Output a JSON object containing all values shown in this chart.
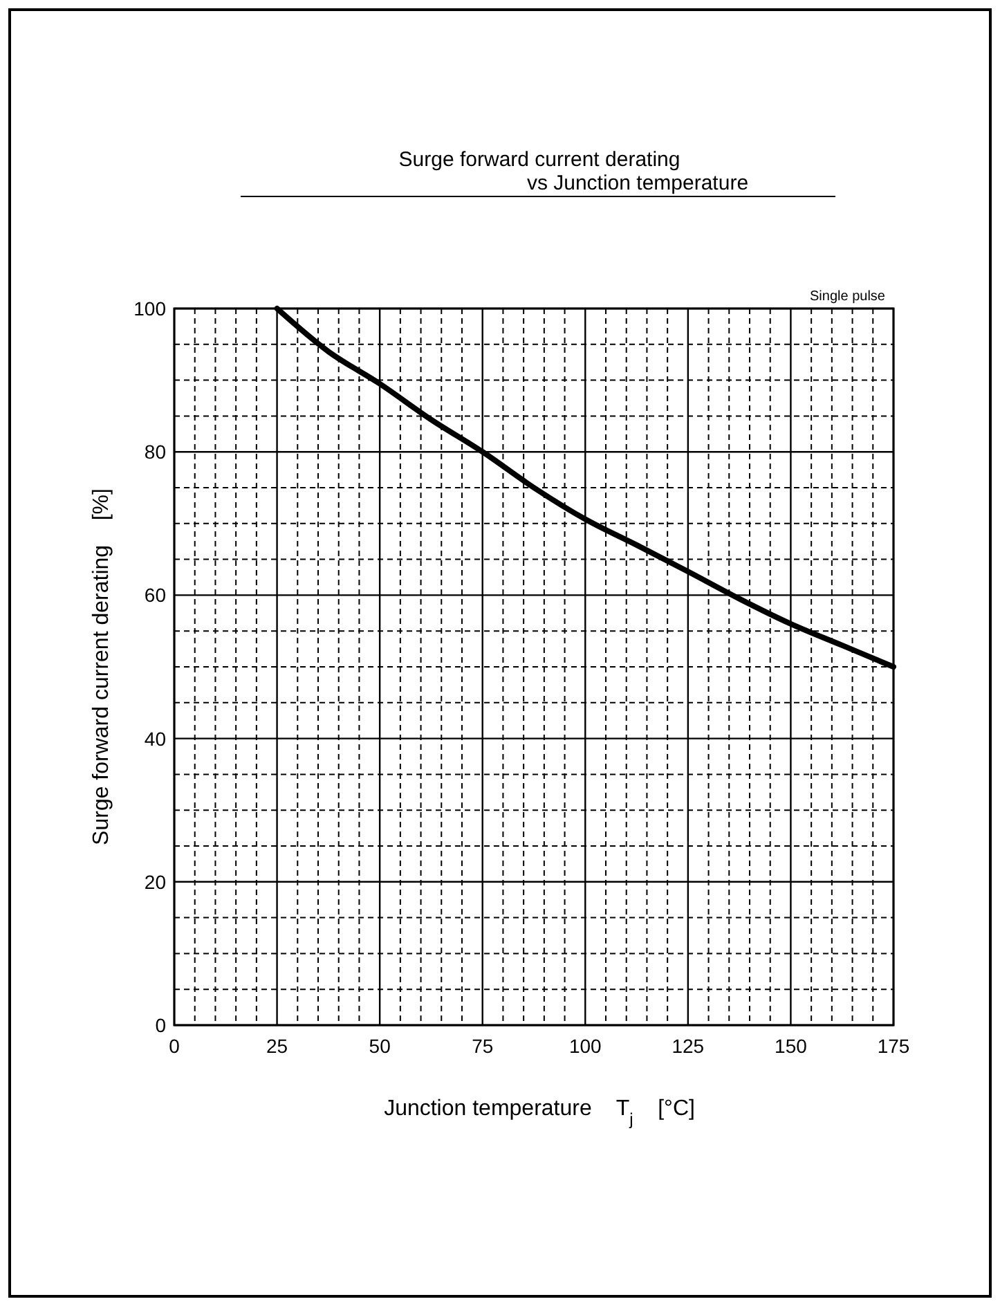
{
  "chart_data": {
    "type": "line",
    "title": "Surge forward current derating\nvs Junction temperature",
    "xlabel": "Junction temperature    T$_{j}$    [°C]",
    "ylabel": "Surge forward current derating    [%]",
    "annotations": [
      "Single pulse"
    ],
    "series": [
      {
        "color": "#000000",
        "x": [
          25,
          37.5,
          50,
          62.5,
          75,
          87.5,
          100,
          112.5,
          125,
          137.5,
          150,
          162.5,
          175
        ],
        "values": [
          100,
          94,
          89.5,
          84.5,
          80,
          75,
          70.6,
          67,
          63.3,
          59.5,
          56,
          53,
          50
        ]
      }
    ],
    "xlim": [
      0,
      175
    ],
    "ylim": [
      0,
      100
    ],
    "xticks": [
      0,
      {
        "value": 5,
        "label": null
      },
      {
        "value": 10,
        "label": null
      },
      {
        "value": 15,
        "label": null
      },
      {
        "value": 20,
        "label": null
      },
      25,
      {
        "value": 30,
        "label": null
      },
      {
        "value": 35,
        "label": null
      },
      {
        "value": 40,
        "label": null
      },
      {
        "value": 45,
        "label": null
      },
      50,
      {
        "value": 55,
        "label": null
      },
      {
        "value": 60,
        "label": null
      },
      {
        "value": 65,
        "label": null
      },
      {
        "value": 70,
        "label": null
      },
      75,
      {
        "value": 80,
        "label": null
      },
      {
        "value": 85,
        "label": null
      },
      {
        "value": 90,
        "label": null
      },
      {
        "value": 95,
        "label": null
      },
      100,
      {
        "value": 105,
        "label": null
      },
      {
        "value": 110,
        "label": null
      },
      {
        "value": 115,
        "label": null
      },
      {
        "value": 120,
        "label": null
      },
      125,
      {
        "value": 130,
        "label": null
      },
      {
        "value": 135,
        "label": null
      },
      {
        "value": 140,
        "label": null
      },
      {
        "value": 145,
        "label": null
      },
      150,
      {
        "value": 155,
        "label": null
      },
      {
        "value": 160,
        "label": null
      },
      {
        "value": 165,
        "label": null
      },
      {
        "value": 170,
        "label": null
      },
      175
    ],
    "yticks": [
      0,
      {
        "value": 5,
        "label": null
      },
      {
        "value": 10,
        "label": null
      },
      {
        "value": 15,
        "label": null
      },
      20,
      {
        "value": 25,
        "label": null
      },
      {
        "value": 30,
        "label": null
      },
      {
        "value": 35,
        "label": null
      },
      40,
      {
        "value": 45,
        "label": null
      },
      {
        "value": 50,
        "label": null
      },
      {
        "value": 55,
        "label": null
      },
      60,
      {
        "value": 65,
        "label": null
      },
      {
        "value": 70,
        "label": null
      },
      {
        "value": 75,
        "label": null
      },
      80,
      {
        "value": 85,
        "label": null
      },
      {
        "value": 90,
        "label": null
      },
      {
        "value": 95,
        "label": null
      },
      100
    ],
    "grid": true,
    "marker": "none",
    "line_style": "solid"
  }
}
